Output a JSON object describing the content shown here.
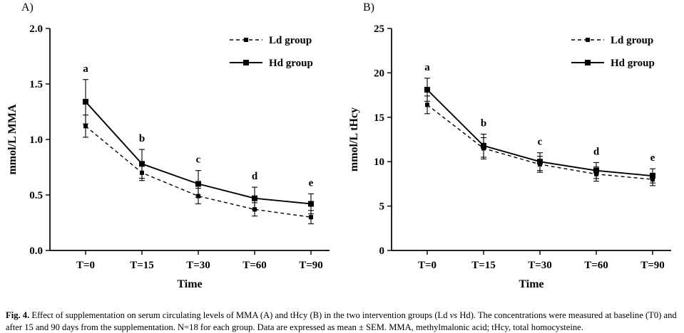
{
  "figure": {
    "colors": {
      "ink": "#000000",
      "background": "#ffffff"
    },
    "caption": {
      "label": "Fig. 4.",
      "part1": " Effect of supplementation on serum circulating levels of MMA (A) and tHcy (B) in the two intervention groups (Ld ",
      "part_vs": "vs",
      "part2": " Hd). The concentrations were measured at baseline (T0) and after 15 and 90 days from the supplementation. N=18 for each group. Data are expressed as mean ± SEM. MMA, methylmalonic acid; tHcy, total homocysteine."
    }
  },
  "chart_data": [
    {
      "type": "line",
      "panel_label": "A)",
      "title": "",
      "xlabel": "Time",
      "ylabel": "mmol/L MMA",
      "categories": [
        "T=0",
        "T=15",
        "T=30",
        "T=60",
        "T=90"
      ],
      "ylim": [
        0,
        2
      ],
      "yticks": [
        0,
        0.5,
        1,
        1.5,
        2
      ],
      "ytick_labels": [
        "0.0",
        "0.5",
        "1.0",
        "1.5",
        "2.0"
      ],
      "grid": false,
      "legend_position": "top-right",
      "sig_letters": [
        "a",
        "b",
        "c",
        "d",
        "e"
      ],
      "series": [
        {
          "name": "Ld group",
          "line": "dashed",
          "marker": "square-small",
          "values": [
            1.12,
            0.7,
            0.49,
            0.37,
            0.3
          ],
          "sem": [
            0.1,
            0.07,
            0.07,
            0.06,
            0.06
          ]
        },
        {
          "name": "Hd group",
          "line": "solid",
          "marker": "square",
          "values": [
            1.34,
            0.78,
            0.6,
            0.47,
            0.42
          ],
          "sem": [
            0.2,
            0.13,
            0.12,
            0.1,
            0.09
          ]
        }
      ]
    },
    {
      "type": "line",
      "panel_label": "B)",
      "title": "",
      "xlabel": "Time",
      "ylabel": "mmol/L tHcy",
      "categories": [
        "T=0",
        "T=15",
        "T=30",
        "T=60",
        "T=90"
      ],
      "ylim": [
        0,
        25
      ],
      "yticks": [
        0,
        5,
        10,
        15,
        20,
        25
      ],
      "ytick_labels": [
        "0",
        "5",
        "10",
        "15",
        "20",
        "25"
      ],
      "grid": false,
      "legend_position": "top-right",
      "sig_letters": [
        "a",
        "b",
        "c",
        "d",
        "e"
      ],
      "series": [
        {
          "name": "Ld group",
          "line": "dashed",
          "marker": "square-small",
          "values": [
            16.4,
            11.5,
            9.7,
            8.6,
            8.0
          ],
          "sem": [
            1.0,
            1.2,
            0.9,
            0.8,
            0.7
          ]
        },
        {
          "name": "Hd group",
          "line": "solid",
          "marker": "square",
          "values": [
            18.1,
            11.8,
            10.0,
            9.0,
            8.4
          ],
          "sem": [
            1.3,
            1.3,
            1.0,
            0.9,
            0.8
          ]
        }
      ]
    }
  ]
}
